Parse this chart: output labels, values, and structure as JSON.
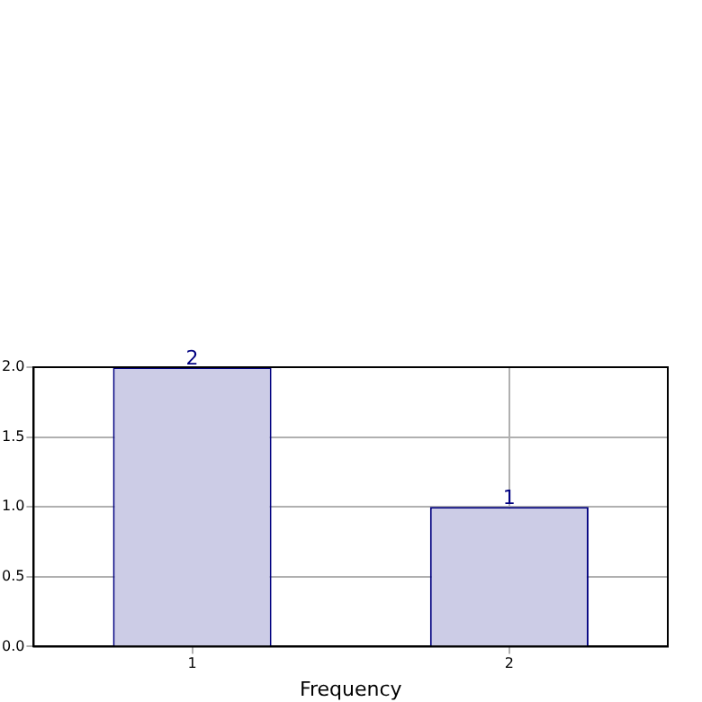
{
  "chart_data": {
    "type": "bar",
    "xlabel": "Frequency",
    "categories": [
      "1",
      "2"
    ],
    "values": [
      2,
      1
    ],
    "color": "#cccce6",
    "ylim": [
      0,
      2
    ],
    "yticks": [
      {
        "value": 0,
        "label": "0.0"
      },
      {
        "value": 0.5,
        "label": "0.5"
      },
      {
        "value": 1,
        "label": "1.0"
      },
      {
        "value": 1.5,
        "label": "1.5"
      },
      {
        "value": 2,
        "label": "2.0"
      }
    ],
    "grid": true,
    "data_labels": true,
    "legend": false
  }
}
